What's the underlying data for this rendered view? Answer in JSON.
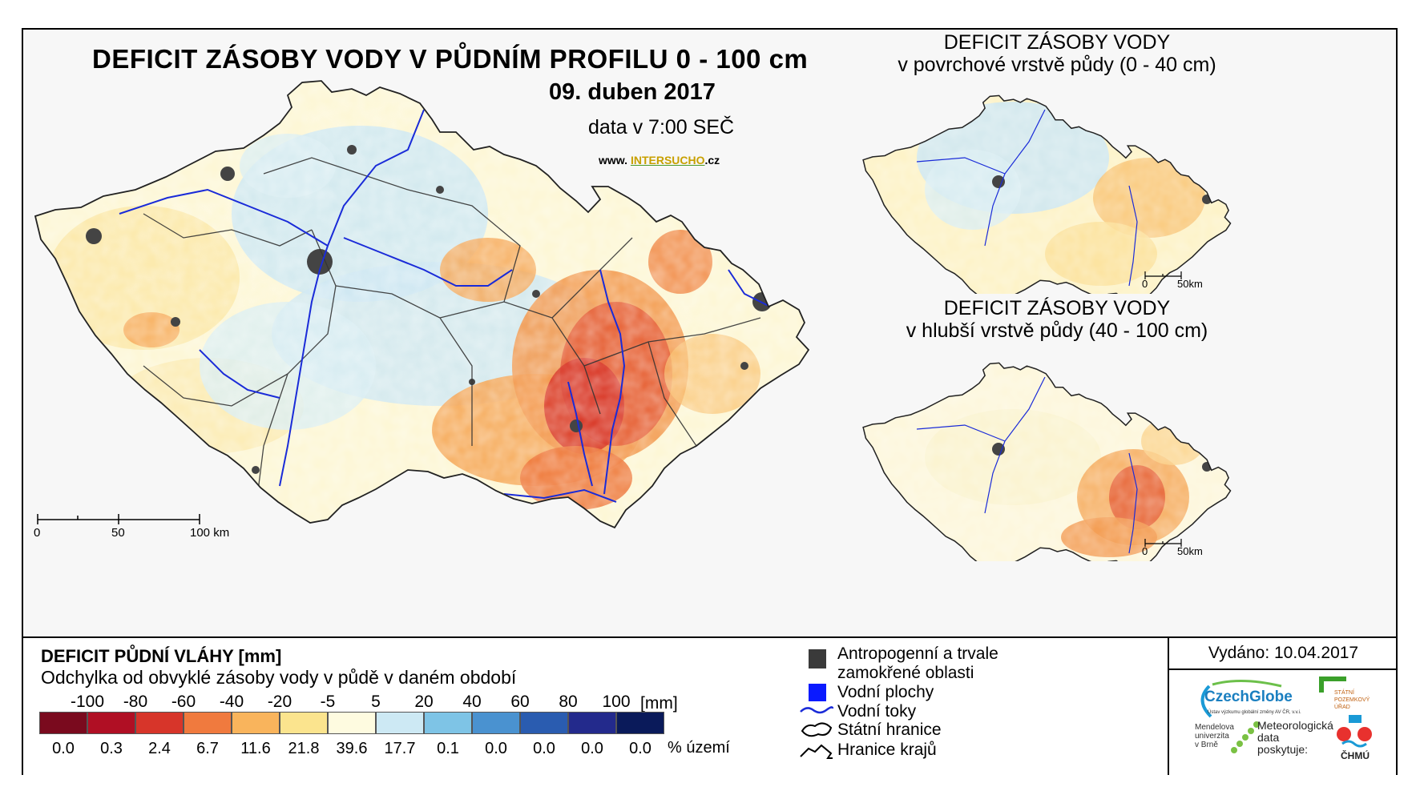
{
  "main_map": {
    "title": "DEFICIT ZÁSOBY VODY V PŮDNÍM PROFILU 0 - 100 cm",
    "date": "09. duben 2017",
    "time": "data v 7:00 SEČ",
    "web_prefix": "www.",
    "web_highlight": "INTERSUCHO",
    "web_suffix": ".cz",
    "scalebar": [
      "0",
      "50",
      "100 km"
    ]
  },
  "inset_top": {
    "title_line1": "DEFICIT ZÁSOBY VODY",
    "title_line2": "v povrchové vrstvě půdy (0 - 40 cm)",
    "scalebar": [
      "0",
      "50km"
    ]
  },
  "inset_bottom": {
    "title_line1": "DEFICIT ZÁSOBY VODY",
    "title_line2": "v hlubší vrstvě půdy (40 - 100 cm)",
    "scalebar": [
      "0",
      "50km"
    ]
  },
  "legend": {
    "title": "DEFICIT PŮDNÍ VLÁHY [mm]",
    "subtitle": "Odchylka od obvyklé zásoby vody v půdě v daném období",
    "unit": "[mm]",
    "pct_unit": "% území",
    "classes": [
      "-100",
      "-80",
      "-60",
      "-40",
      "-20",
      "-5",
      "5",
      "20",
      "40",
      "60",
      "80",
      "100"
    ],
    "colors": [
      "#7a0a1e",
      "#b00f24",
      "#d7352a",
      "#f07a3e",
      "#f9b45c",
      "#fbe48e",
      "#fefbe0",
      "#cde9f4",
      "#7ec4e6",
      "#4a92d0",
      "#2a5cb0",
      "#232a8c",
      "#0a1a5a"
    ],
    "percentages": [
      "0.0",
      "0.3",
      "2.4",
      "6.7",
      "11.6",
      "21.8",
      "39.6",
      "17.7",
      "0.1",
      "0.0",
      "0.0",
      "0.0",
      "0.0"
    ]
  },
  "symbols": {
    "anthropogenic": [
      "Antropogenní a trvale",
      "zamokřené oblasti"
    ],
    "water_bodies": "Vodní plochy",
    "rivers": "Vodní toky",
    "state_border": "Státní hranice",
    "region_border": "Hranice krajů"
  },
  "issue": {
    "issued": "Vydáno: 10.04.2017",
    "czechglobe": "CzechGlobe",
    "czechglobe_sub": "Ústav výzkumu globální změny AV ČR, v.v.i.",
    "spu": [
      "STÁTNÍ",
      "POZEMKOVÝ",
      "ÚŘAD"
    ],
    "mendel": [
      "Mendelova",
      "univerzita",
      "v Brně"
    ],
    "meteo": [
      "Meteorologická",
      "data",
      "poskytuje:"
    ],
    "chmu": "ČHMÚ"
  }
}
